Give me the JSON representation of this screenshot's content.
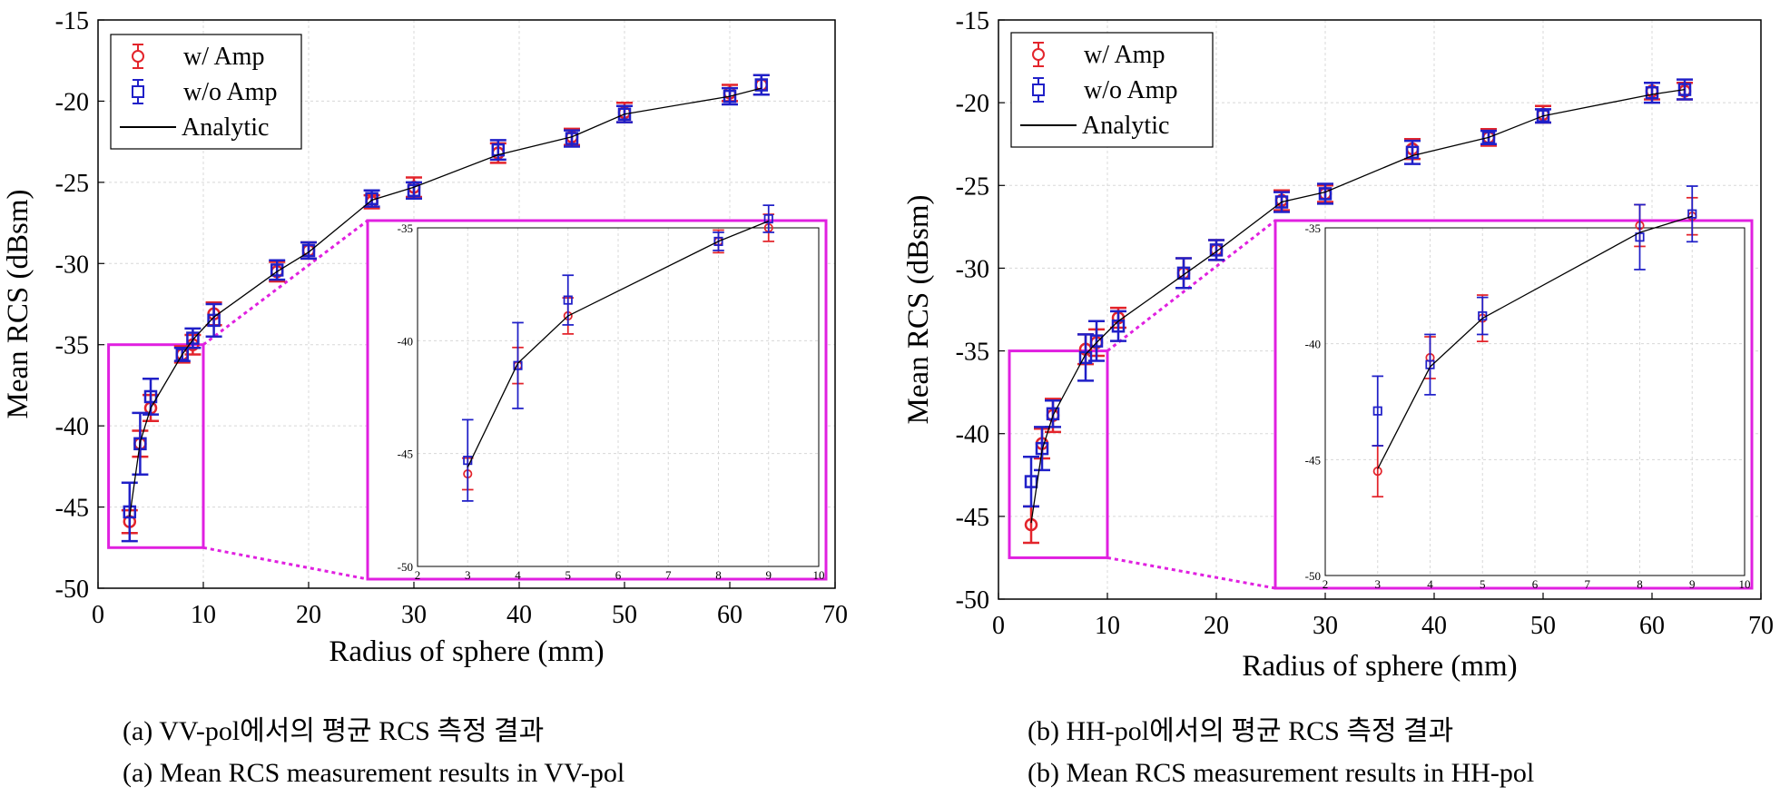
{
  "colors": {
    "with_amp": "#e3242b",
    "without_amp": "#2020c8",
    "analytic": "#000000",
    "inset_frame": "#e020e0",
    "grid": "#d8d8d8"
  },
  "chart_data": [
    {
      "type": "line",
      "panel": "a",
      "xlabel": "Radius of sphere (mm)",
      "ylabel": "Mean RCS (dBsm)",
      "xlim": [
        0,
        70
      ],
      "ylim": [
        -50,
        -15
      ],
      "xticks": [
        "0",
        "10",
        "20",
        "30",
        "40",
        "50",
        "60",
        "70"
      ],
      "yticks": [
        "-15",
        "-20",
        "-25",
        "-30",
        "-35",
        "-40",
        "-45",
        "-50"
      ],
      "grid": true,
      "legend": {
        "position": "top-left",
        "entries": [
          "w/ Amp",
          "w/o Amp",
          "Analytic"
        ]
      },
      "series": [
        {
          "name": "w/ Amp",
          "marker": "circle",
          "x": [
            3,
            4,
            5,
            8,
            9,
            11,
            17,
            20,
            26,
            30,
            38,
            45,
            50,
            60,
            63
          ],
          "y": [
            -45.9,
            -41.1,
            -38.9,
            -35.6,
            -35.0,
            -33.1,
            -30.5,
            -29.2,
            -26.2,
            -25.3,
            -23.2,
            -22.2,
            -20.7,
            -19.5,
            -19.0
          ],
          "err": [
            0.7,
            0.8,
            0.8,
            0.5,
            0.6,
            0.7,
            0.6,
            0.5,
            0.4,
            0.6,
            0.6,
            0.5,
            0.6,
            0.5,
            0.6
          ]
        },
        {
          "name": "w/o Amp",
          "marker": "square",
          "x": [
            3,
            4,
            5,
            8,
            9,
            11,
            17,
            20,
            26,
            30,
            38,
            45,
            50,
            60,
            63
          ],
          "y": [
            -45.3,
            -41.1,
            -38.2,
            -35.6,
            -34.6,
            -33.5,
            -30.4,
            -29.2,
            -26.0,
            -25.5,
            -23.0,
            -22.3,
            -20.8,
            -19.7,
            -19.0
          ],
          "err": [
            1.8,
            1.9,
            1.1,
            0.4,
            0.6,
            1.0,
            0.6,
            0.5,
            0.5,
            0.5,
            0.6,
            0.5,
            0.5,
            0.5,
            0.6
          ]
        },
        {
          "name": "Analytic",
          "marker": "none",
          "x": [
            3,
            4,
            5,
            8,
            9,
            11,
            17,
            20,
            26,
            30,
            38,
            45,
            50,
            60,
            63
          ],
          "y": [
            -45.6,
            -41.0,
            -38.9,
            -35.6,
            -34.7,
            -33.3,
            -30.5,
            -29.3,
            -26.1,
            -25.3,
            -23.3,
            -22.2,
            -20.8,
            -19.7,
            -19.2
          ]
        }
      ],
      "inset": {
        "xlim": [
          2,
          10
        ],
        "ylim": [
          -50,
          -35
        ],
        "xticks": [
          "2",
          "3",
          "4",
          "5",
          "6",
          "7",
          "8",
          "9",
          "10"
        ],
        "yticks": [
          "-35",
          "-40",
          "-45",
          "-50"
        ],
        "zoom_region": {
          "x": [
            1,
            10
          ],
          "y": [
            -47.5,
            -35
          ]
        }
      }
    },
    {
      "type": "line",
      "panel": "b",
      "xlabel": "Radius of sphere (mm)",
      "ylabel": "Mean RCS (dBsm)",
      "xlim": [
        0,
        70
      ],
      "ylim": [
        -50,
        -15
      ],
      "xticks": [
        "0",
        "10",
        "20",
        "30",
        "40",
        "50",
        "60",
        "70"
      ],
      "yticks": [
        "-15",
        "-20",
        "-25",
        "-30",
        "-35",
        "-40",
        "-45",
        "-50"
      ],
      "grid": true,
      "legend": {
        "position": "top-left",
        "entries": [
          "w/ Amp",
          "w/o Amp",
          "Analytic"
        ]
      },
      "series": [
        {
          "name": "w/ Amp",
          "marker": "circle",
          "x": [
            3,
            4,
            5,
            8,
            9,
            11,
            17,
            20,
            26,
            30,
            38,
            45,
            50,
            60,
            63
          ],
          "y": [
            -45.5,
            -40.6,
            -38.9,
            -34.9,
            -34.5,
            -33.0,
            -30.3,
            -28.9,
            -25.9,
            -25.5,
            -22.8,
            -22.1,
            -20.7,
            -19.3,
            -19.3
          ],
          "err": [
            1.1,
            0.9,
            1.0,
            0.9,
            0.8,
            0.6,
            0.9,
            0.6,
            0.6,
            0.5,
            0.6,
            0.5,
            0.5,
            0.5,
            0.5
          ]
        },
        {
          "name": "w/o Amp",
          "marker": "square",
          "x": [
            3,
            4,
            5,
            8,
            9,
            11,
            17,
            20,
            26,
            30,
            38,
            45,
            50,
            60,
            63
          ],
          "y": [
            -42.9,
            -40.9,
            -38.8,
            -35.4,
            -34.4,
            -33.5,
            -30.3,
            -28.9,
            -26.0,
            -25.5,
            -23.0,
            -22.1,
            -20.8,
            -19.4,
            -19.2
          ],
          "err": [
            1.5,
            1.3,
            0.8,
            1.4,
            1.2,
            0.9,
            0.9,
            0.6,
            0.6,
            0.6,
            0.7,
            0.4,
            0.4,
            0.6,
            0.6
          ]
        },
        {
          "name": "Analytic",
          "marker": "none",
          "x": [
            3,
            4,
            5,
            8,
            9,
            11,
            17,
            20,
            26,
            30,
            38,
            45,
            50,
            60,
            63
          ],
          "y": [
            -45.4,
            -41.0,
            -38.9,
            -35.2,
            -34.5,
            -33.2,
            -30.4,
            -29.0,
            -26.0,
            -25.4,
            -23.2,
            -22.1,
            -20.8,
            -19.5,
            -19.2
          ]
        }
      ],
      "inset": {
        "xlim": [
          2,
          10
        ],
        "ylim": [
          -50,
          -35
        ],
        "xticks": [
          "2",
          "3",
          "4",
          "5",
          "6",
          "7",
          "8",
          "9",
          "10"
        ],
        "yticks": [
          "-35",
          "-40",
          "-45",
          "-50"
        ],
        "zoom_region": {
          "x": [
            1,
            10
          ],
          "y": [
            -47.5,
            -35
          ]
        }
      }
    }
  ],
  "captions": {
    "a_korean": "(a)  VV-pol에서의  평균  RCS  측정  결과",
    "a_english": "(a)  Mean  RCS  measurement  results  in  VV-pol",
    "b_korean": "(b)  HH-pol에서의  평균  RCS  측정  결과",
    "b_english": "(b)  Mean  RCS  measurement  results  in  HH-pol"
  }
}
